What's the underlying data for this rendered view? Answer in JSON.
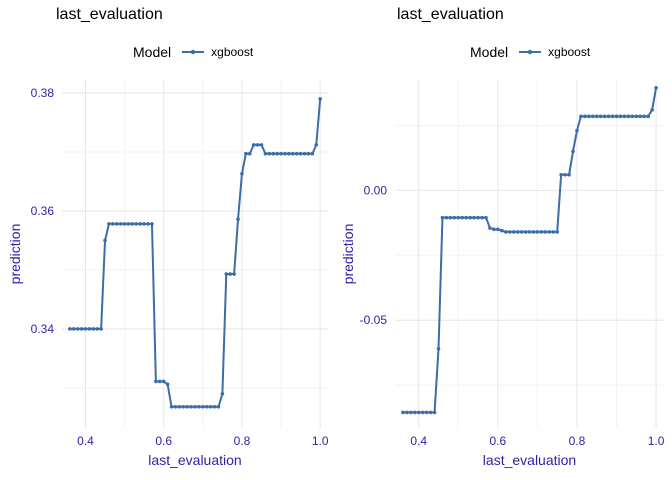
{
  "colors": {
    "series": "#3d6da8",
    "grid_major": "#e6e6e6",
    "grid_minor": "#f3f3f3",
    "axis_text": "#3a1aa8",
    "title": "#000000"
  },
  "chart_data": [
    {
      "type": "line",
      "title": "last_evaluation",
      "xlabel": "last_evaluation",
      "ylabel": "prediction",
      "legend_title": "Model",
      "legend_placement": "top",
      "grid": true,
      "xlim": [
        0.34,
        1.02
      ],
      "ylim": [
        0.3232,
        0.3822
      ],
      "xticks": [
        0.4,
        0.6,
        0.8,
        1.0
      ],
      "xtick_labels": [
        "0.4",
        "0.6",
        "0.8",
        "1.0"
      ],
      "yticks": [
        0.34,
        0.36,
        0.38
      ],
      "ytick_labels": [
        "0.34",
        "0.36",
        "0.38"
      ],
      "series": [
        {
          "name": "xgboost",
          "x": [
            0.36,
            0.37,
            0.38,
            0.39,
            0.4,
            0.41,
            0.42,
            0.43,
            0.44,
            0.45,
            0.46,
            0.47,
            0.48,
            0.49,
            0.5,
            0.51,
            0.52,
            0.53,
            0.54,
            0.55,
            0.56,
            0.57,
            0.58,
            0.59,
            0.6,
            0.61,
            0.62,
            0.63,
            0.64,
            0.65,
            0.66,
            0.67,
            0.68,
            0.69,
            0.7,
            0.71,
            0.72,
            0.73,
            0.74,
            0.75,
            0.76,
            0.77,
            0.78,
            0.79,
            0.8,
            0.81,
            0.82,
            0.83,
            0.84,
            0.85,
            0.86,
            0.87,
            0.88,
            0.89,
            0.9,
            0.91,
            0.92,
            0.93,
            0.94,
            0.95,
            0.96,
            0.97,
            0.98,
            0.99,
            1.0
          ],
          "y": [
            0.34,
            0.34,
            0.34,
            0.34,
            0.34,
            0.34,
            0.34,
            0.34,
            0.34,
            0.355,
            0.3578,
            0.3578,
            0.3578,
            0.3578,
            0.3578,
            0.3578,
            0.3578,
            0.3578,
            0.3578,
            0.3578,
            0.3578,
            0.3578,
            0.3311,
            0.3311,
            0.3311,
            0.3306,
            0.3268,
            0.3268,
            0.3268,
            0.3268,
            0.3268,
            0.3268,
            0.3268,
            0.3268,
            0.3268,
            0.3268,
            0.3268,
            0.3268,
            0.3268,
            0.329,
            0.3493,
            0.3493,
            0.3493,
            0.3586,
            0.3663,
            0.3697,
            0.3697,
            0.3712,
            0.3712,
            0.3712,
            0.3697,
            0.3697,
            0.3697,
            0.3697,
            0.3697,
            0.3697,
            0.3697,
            0.3697,
            0.3697,
            0.3697,
            0.3697,
            0.3697,
            0.3697,
            0.3712,
            0.379
          ]
        }
      ]
    },
    {
      "type": "line",
      "title": "last_evaluation",
      "xlabel": "last_evaluation",
      "ylabel": "prediction",
      "legend_title": "Model",
      "legend_placement": "top",
      "grid": true,
      "xlim": [
        0.34,
        1.02
      ],
      "ylim": [
        -0.0915,
        0.0425
      ],
      "xticks": [
        0.4,
        0.6,
        0.8,
        1.0
      ],
      "xtick_labels": [
        "0.4",
        "0.6",
        "0.8",
        "1.0"
      ],
      "yticks": [
        -0.05,
        0.0
      ],
      "ytick_labels": [
        "-0.05",
        "0.00"
      ],
      "series": [
        {
          "name": "xgboost",
          "x": [
            0.36,
            0.37,
            0.38,
            0.39,
            0.4,
            0.41,
            0.42,
            0.43,
            0.44,
            0.45,
            0.46,
            0.47,
            0.48,
            0.49,
            0.5,
            0.51,
            0.52,
            0.53,
            0.54,
            0.55,
            0.56,
            0.57,
            0.58,
            0.59,
            0.6,
            0.61,
            0.62,
            0.63,
            0.64,
            0.65,
            0.66,
            0.67,
            0.68,
            0.69,
            0.7,
            0.71,
            0.72,
            0.73,
            0.74,
            0.75,
            0.76,
            0.77,
            0.78,
            0.79,
            0.8,
            0.81,
            0.82,
            0.83,
            0.84,
            0.85,
            0.86,
            0.87,
            0.88,
            0.89,
            0.9,
            0.91,
            0.92,
            0.93,
            0.94,
            0.95,
            0.96,
            0.97,
            0.98,
            0.99,
            1.0
          ],
          "y": [
            -0.0855,
            -0.0855,
            -0.0855,
            -0.0855,
            -0.0855,
            -0.0855,
            -0.0855,
            -0.0855,
            -0.0855,
            -0.061,
            -0.0105,
            -0.0105,
            -0.0105,
            -0.0105,
            -0.0105,
            -0.0105,
            -0.0105,
            -0.0105,
            -0.0105,
            -0.0105,
            -0.0105,
            -0.0105,
            -0.0145,
            -0.015,
            -0.015,
            -0.0155,
            -0.016,
            -0.016,
            -0.016,
            -0.016,
            -0.016,
            -0.016,
            -0.016,
            -0.016,
            -0.016,
            -0.016,
            -0.016,
            -0.016,
            -0.016,
            -0.016,
            0.006,
            0.006,
            0.006,
            0.015,
            0.023,
            0.0285,
            0.0285,
            0.0285,
            0.0285,
            0.0285,
            0.0285,
            0.0285,
            0.0285,
            0.0285,
            0.0285,
            0.0285,
            0.0285,
            0.0285,
            0.0285,
            0.0285,
            0.0285,
            0.0285,
            0.0285,
            0.031,
            0.0395
          ]
        }
      ]
    }
  ]
}
